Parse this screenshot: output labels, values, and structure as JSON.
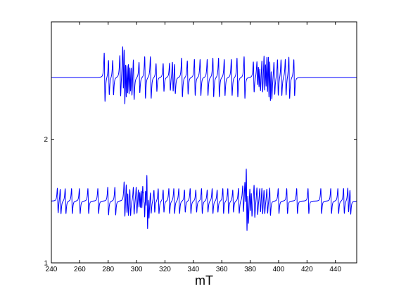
{
  "chart_data": {
    "type": "line",
    "title": "",
    "xlabel": "mT",
    "ylabel": "",
    "xlim": [
      240,
      455
    ],
    "ylim": [
      1,
      2.95
    ],
    "x_ticks": [
      240,
      260,
      280,
      300,
      320,
      340,
      360,
      380,
      400,
      420,
      440
    ],
    "x_tick_labels": [
      "240",
      "260",
      "280",
      "300",
      "320",
      "340",
      "360",
      "380",
      "400",
      "420",
      "440"
    ],
    "y_ticks": [
      1,
      2
    ],
    "y_tick_labels": [
      "1",
      "2"
    ],
    "grid": false,
    "legend": "none",
    "line_color": "#0000ff",
    "series": [
      {
        "baseline": 2.5,
        "x_range": [
          240,
          455
        ],
        "lines_mT": [
          277.5,
          280.5,
          283.5,
          288.5,
          290.5,
          291.5,
          292.5,
          293.5,
          294.5,
          295.5,
          296.5,
          298,
          302,
          306,
          310,
          314,
          319,
          323.5,
          325.5,
          327,
          332,
          336,
          341,
          345,
          350,
          354,
          358,
          362,
          367,
          371,
          376,
          382.5,
          385,
          386,
          387,
          388.5,
          390,
          391,
          392,
          393,
          394,
          395,
          397,
          399.5,
          402,
          405,
          407.5,
          411
        ],
        "peak_amplitudes": [
          0.35,
          0.25,
          0.25,
          0.3,
          0.38,
          0.5,
          0.35,
          0.3,
          0.3,
          0.25,
          0.25,
          0.3,
          0.22,
          0.3,
          0.3,
          0.2,
          0.2,
          0.2,
          0.22,
          0.22,
          0.28,
          0.24,
          0.26,
          0.26,
          0.26,
          0.28,
          0.28,
          0.26,
          0.26,
          0.28,
          0.3,
          0.22,
          0.2,
          0.2,
          0.2,
          0.25,
          0.3,
          0.25,
          0.35,
          0.4,
          0.38,
          0.26,
          0.24,
          0.26,
          0.26,
          0.26,
          0.3,
          0.26
        ]
      },
      {
        "baseline": 1.5,
        "x_range": [
          240,
          455
        ],
        "lines_mT": [
          244.5,
          246.5,
          250,
          254.5,
          260,
          266,
          273,
          280,
          285,
          291.5,
          293,
          294,
          295.5,
          298,
          300,
          301.5,
          302.5,
          303.5,
          304.5,
          305,
          305.5,
          306.5,
          307.5,
          308.5,
          310,
          312.5,
          315.5,
          319,
          323,
          326.5,
          330,
          334,
          338,
          342,
          346,
          350,
          353.5,
          357,
          361,
          364.5,
          368,
          372,
          375,
          376.5,
          377.5,
          378.5,
          380,
          381,
          383,
          385,
          387,
          388.5,
          390,
          392,
          394,
          400,
          406,
          413,
          421,
          430,
          437,
          442,
          446,
          449,
          450.5
        ],
        "peak_amplitudes": [
          0.18,
          0.18,
          0.18,
          0.18,
          0.18,
          0.18,
          0.18,
          0.2,
          0.2,
          0.26,
          0.24,
          0.2,
          0.2,
          0.2,
          0.2,
          0.16,
          0.16,
          0.18,
          0.16,
          0.2,
          0.22,
          0.2,
          0.45,
          0.2,
          0.16,
          0.16,
          0.18,
          0.16,
          0.18,
          0.18,
          0.18,
          0.16,
          0.18,
          0.16,
          0.18,
          0.16,
          0.18,
          0.16,
          0.18,
          0.18,
          0.16,
          0.18,
          0.2,
          0.22,
          0.52,
          0.28,
          0.2,
          0.2,
          0.24,
          0.2,
          0.18,
          0.2,
          0.18,
          0.18,
          0.2,
          0.18,
          0.18,
          0.18,
          0.18,
          0.18,
          0.18,
          0.18,
          0.18,
          0.18,
          0.18
        ]
      }
    ]
  }
}
